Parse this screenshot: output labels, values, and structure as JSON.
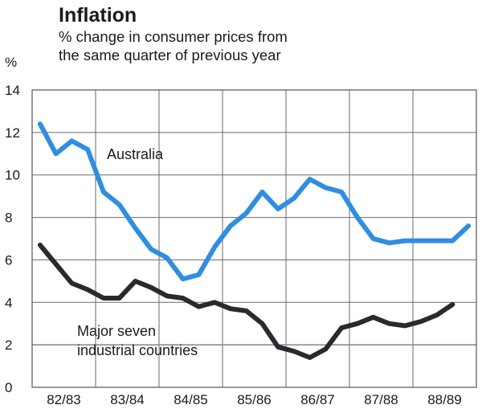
{
  "chart_data": {
    "type": "line",
    "title": "Inflation",
    "subtitle_lines": [
      "% change in consumer prices from",
      "the same quarter of previous year"
    ],
    "ylabel": "%",
    "xlabel": "",
    "ylim": [
      0,
      14
    ],
    "yticks": [
      0,
      2,
      4,
      6,
      8,
      10,
      12,
      14
    ],
    "xlim": [
      0,
      28
    ],
    "categories": [
      "82/83",
      "83/84",
      "84/85",
      "85/86",
      "86/87",
      "87/88",
      "88/89"
    ],
    "grid": true,
    "reference_line": {
      "value": 2,
      "color": "#a0789a"
    },
    "x": [
      0.5,
      1.5,
      2.5,
      3.5,
      4.5,
      5.5,
      6.5,
      7.5,
      8.5,
      9.5,
      10.5,
      11.5,
      12.5,
      13.5,
      14.5,
      15.5,
      16.5,
      17.5,
      18.5,
      19.5,
      20.5,
      21.5,
      22.5,
      23.5,
      24.5,
      25.5,
      26.5,
      27.5
    ],
    "series": [
      {
        "name": "Australia",
        "color": "#2f8ee0",
        "values": [
          12.4,
          11.0,
          11.6,
          11.2,
          9.2,
          8.6,
          7.5,
          6.5,
          6.1,
          5.1,
          5.3,
          6.6,
          7.6,
          8.2,
          9.2,
          8.4,
          8.9,
          9.8,
          9.4,
          9.2,
          8.0,
          7.0,
          6.8,
          6.9,
          6.9,
          6.9,
          6.9,
          7.6
        ]
      },
      {
        "name": "Major seven industrial countries",
        "name_lines": [
          "Major seven",
          "industrial countries"
        ],
        "color": "#2a2a2e",
        "values": [
          6.7,
          5.8,
          4.9,
          4.6,
          4.2,
          4.2,
          5.0,
          4.7,
          4.3,
          4.2,
          3.8,
          4.0,
          3.7,
          3.6,
          3.0,
          1.9,
          1.7,
          1.4,
          1.8,
          2.8,
          3.0,
          3.3,
          3.0,
          2.9,
          3.1,
          3.4,
          3.9,
          null
        ]
      }
    ]
  }
}
